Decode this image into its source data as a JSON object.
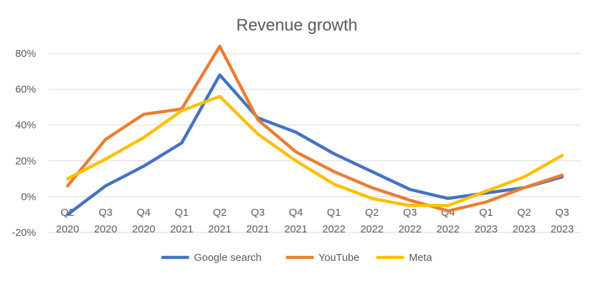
{
  "chart_data": {
    "type": "line",
    "title": "Revenue growth",
    "xlabel": "",
    "ylabel": "",
    "categories": [
      [
        "Q2",
        "2020"
      ],
      [
        "Q3",
        "2020"
      ],
      [
        "Q4",
        "2020"
      ],
      [
        "Q1",
        "2021"
      ],
      [
        "Q2",
        "2021"
      ],
      [
        "Q3",
        "2021"
      ],
      [
        "Q4",
        "2021"
      ],
      [
        "Q1",
        "2022"
      ],
      [
        "Q2",
        "2022"
      ],
      [
        "Q3",
        "2022"
      ],
      [
        "Q4",
        "2022"
      ],
      [
        "Q1",
        "2023"
      ],
      [
        "Q2",
        "2023"
      ],
      [
        "Q3",
        "2023"
      ]
    ],
    "ylim": [
      -20,
      80
    ],
    "yticks": [
      -20,
      0,
      20,
      40,
      60,
      80
    ],
    "y_tick_labels": [
      "-20%",
      "0%",
      "20%",
      "40%",
      "60%",
      "80%"
    ],
    "grid": "horizontal",
    "legend": "bottom",
    "series": [
      {
        "name": "Google search",
        "color": "#4472c4",
        "values": [
          -10,
          6,
          17,
          30,
          68,
          44,
          36,
          24,
          14,
          4,
          -1,
          2,
          5,
          11
        ]
      },
      {
        "name": "YouTube",
        "color": "#ed7d31",
        "values": [
          6,
          32,
          46,
          49,
          84,
          43,
          25,
          14,
          5,
          -2,
          -8,
          -3,
          5,
          12
        ]
      },
      {
        "name": "Meta",
        "color": "#ffc000",
        "values": [
          10,
          21,
          33,
          48,
          56,
          35,
          20,
          7,
          -1,
          -5,
          -5,
          3,
          11,
          23
        ]
      }
    ]
  }
}
